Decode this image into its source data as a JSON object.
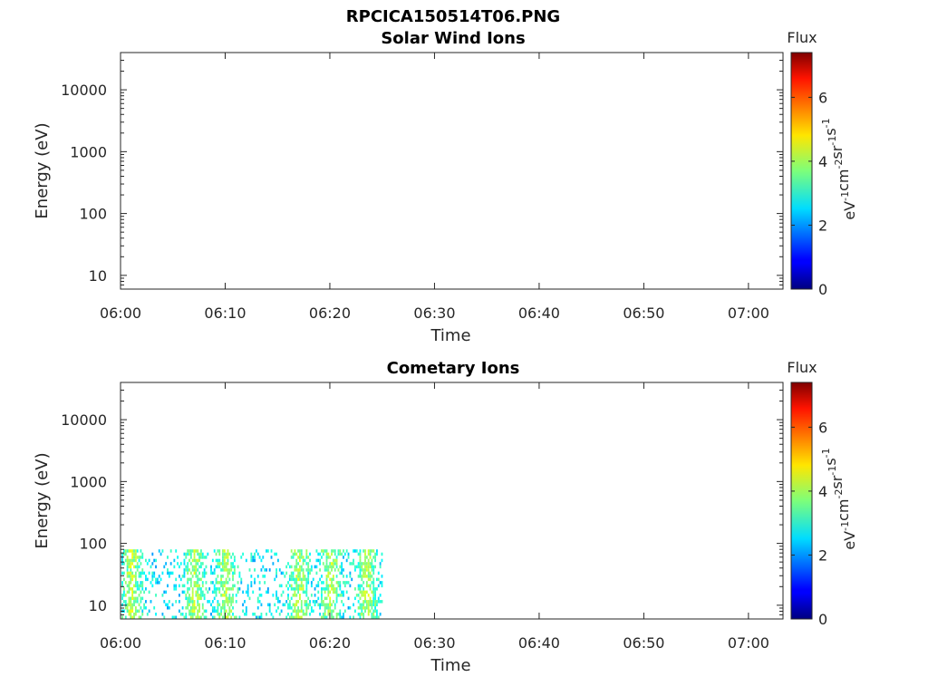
{
  "figure": {
    "title": "RPCICA150514T06.PNG"
  },
  "colorbar": {
    "label": "Flux",
    "units_base": [
      "eV",
      "cm",
      "sr",
      "s"
    ],
    "units_exp": [
      "-1",
      "-2",
      "-1",
      "-1"
    ],
    "range": [
      0,
      7.4
    ],
    "ticks": [
      "0",
      "2",
      "4",
      "6"
    ],
    "colormap": "jet"
  },
  "x_axis": {
    "label": "Time",
    "ticks": [
      "06:00",
      "06:10",
      "06:20",
      "06:30",
      "06:40",
      "06:50",
      "07:00"
    ],
    "range_minutes": [
      0,
      63.3
    ]
  },
  "y_axis": {
    "label": "Energy (eV)",
    "scale": "log",
    "ticks": [
      "10",
      "100",
      "1000",
      "10000"
    ],
    "range": [
      6,
      40000
    ]
  },
  "chart_data": [
    {
      "type": "heatmap",
      "title": "Solar Wind Ions",
      "xlabel": "Time",
      "ylabel": "Energy (eV)",
      "yscale": "log",
      "ylim": [
        6,
        40000
      ],
      "xlim": [
        "06:00",
        "07:03"
      ],
      "clim": [
        0,
        7.4
      ],
      "cells": []
    },
    {
      "type": "heatmap",
      "title": "Cometary Ions",
      "xlabel": "Time",
      "ylabel": "Energy (eV)",
      "yscale": "log",
      "ylim": [
        6,
        40000
      ],
      "xlim": [
        "06:00",
        "07:03"
      ],
      "clim": [
        0,
        7.4
      ],
      "data_time_range": [
        "06:00",
        "06:25"
      ],
      "data_energy_range": [
        6,
        80
      ],
      "typical_flux": [
        2,
        4.5
      ],
      "enhanced_time_bands": [
        "06:01",
        "06:07",
        "06:10",
        "06:17",
        "06:20",
        "06:23"
      ]
    }
  ]
}
